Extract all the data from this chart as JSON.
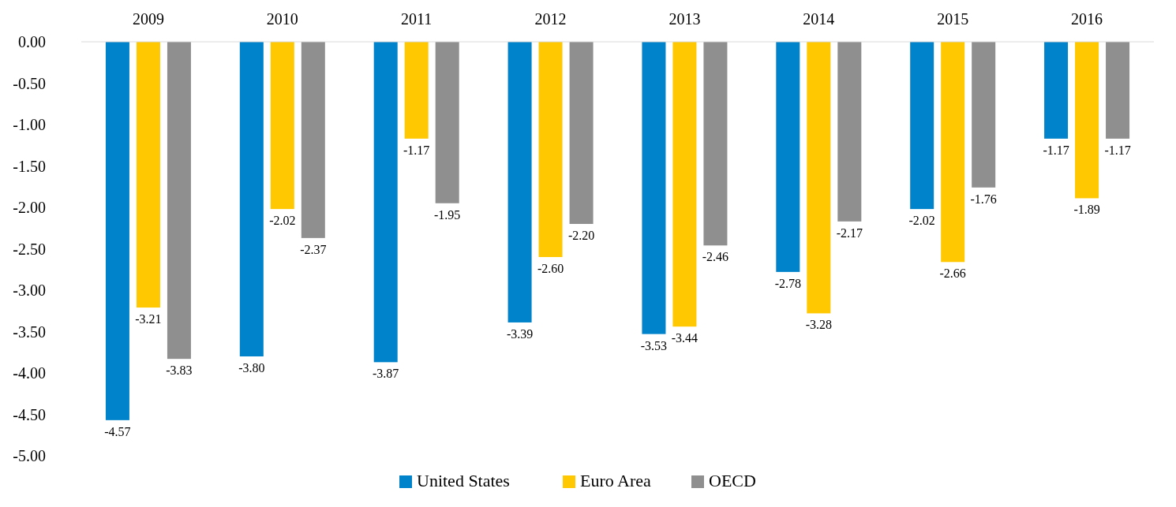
{
  "chart_data": {
    "type": "bar",
    "categories": [
      "2009",
      "2010",
      "2011",
      "2012",
      "2013",
      "2014",
      "2015",
      "2016"
    ],
    "series": [
      {
        "name": "United States",
        "color": "#0083ca",
        "values": [
          -4.57,
          -3.8,
          -3.87,
          -3.39,
          -3.53,
          -2.78,
          -2.02,
          -1.17
        ],
        "value_labels": [
          "-4.57",
          "-3.80",
          "-3.87",
          "-3.39",
          "-3.53",
          "-2.78",
          "-2.02",
          "-1.17"
        ]
      },
      {
        "name": "Euro Area",
        "color": "#ffc800",
        "values": [
          -3.21,
          -2.02,
          -1.17,
          -2.6,
          -3.44,
          -3.28,
          -2.66,
          -1.89
        ],
        "value_labels": [
          "-3.21",
          "-2.02",
          "-1.17",
          "-2.60",
          "-3.44",
          "-3.28",
          "-2.66",
          "-1.89"
        ]
      },
      {
        "name": "OECD",
        "color": "#8f8f8f",
        "values": [
          -3.83,
          -2.37,
          -1.95,
          -2.2,
          -2.46,
          -2.17,
          -1.76,
          -1.17
        ],
        "value_labels": [
          "-3.83",
          "-2.37",
          "-1.95",
          "-2.20",
          "-2.46",
          "-2.17",
          "-1.76",
          "-1.17"
        ]
      }
    ],
    "ylim": [
      -5,
      0
    ],
    "yticks": [
      {
        "value": 0,
        "label": "0.00"
      },
      {
        "value": -0.5,
        "label": "-0.50"
      },
      {
        "value": -1,
        "label": "-1.00"
      },
      {
        "value": -1.5,
        "label": "-1.50"
      },
      {
        "value": -2,
        "label": "-2.00"
      },
      {
        "value": -2.5,
        "label": "-2.50"
      },
      {
        "value": -3,
        "label": "-3.00"
      },
      {
        "value": -3.5,
        "label": "-3.50"
      },
      {
        "value": -4,
        "label": "-4.00"
      },
      {
        "value": -4.5,
        "label": "-4.50"
      },
      {
        "value": -5,
        "label": "-5.00"
      }
    ],
    "grid": false,
    "legend": "bottom"
  }
}
